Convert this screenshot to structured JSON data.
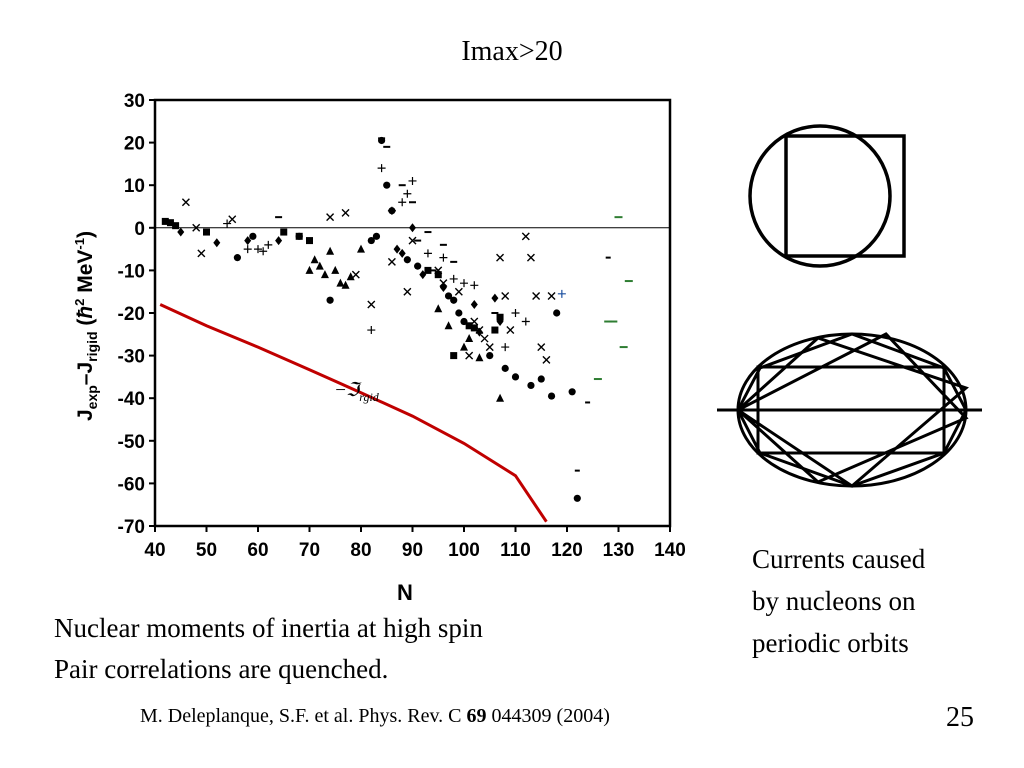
{
  "slide": {
    "title": "Imax>20",
    "caption_right": [
      "Currents caused",
      "by nucleons on",
      "periodic orbits"
    ],
    "caption_left": [
      "Nuclear moments of inertia at high spin",
      "Pair correlations are quenched."
    ],
    "reference": {
      "prefix": "M. Deleplanque, S.F. et al. Phys. Rev. C ",
      "volume": "69",
      "suffix": " 044309 (2004)"
    },
    "page_number": "25"
  },
  "chart_data": {
    "type": "scatter",
    "xlabel": "N",
    "ylabel": {
      "main": "J",
      "sub1": "exp",
      "dash": "–",
      "main2": "J",
      "sub2": "rigid",
      "units_open": " (",
      "hbar": "ħ",
      "sq": "2",
      "units_mid": " MeV",
      "inv": "-1",
      "units_close": ")"
    },
    "xlim": [
      40,
      140
    ],
    "ylim": [
      -70,
      30
    ],
    "xticks": [
      "40",
      "50",
      "60",
      "70",
      "80",
      "90",
      "100",
      "110",
      "120",
      "130",
      "140"
    ],
    "yticks": [
      "30",
      "20",
      "10",
      "0",
      "-10",
      "-20",
      "-30",
      "-40",
      "-50",
      "-60",
      "-70"
    ],
    "zero_line": 0,
    "curve_label": {
      "prefix": "−",
      "symbol": "ℑ",
      "sub": "rgid"
    },
    "line_color": "#c00000",
    "green_color": "#2e7d32",
    "blue_color": "#1a4fa0",
    "rigid_curve": [
      [
        41,
        -18
      ],
      [
        50,
        -23
      ],
      [
        60,
        -28
      ],
      [
        70,
        -33.3
      ],
      [
        80,
        -38.7
      ],
      [
        90,
        -44.2
      ],
      [
        100,
        -50.6
      ],
      [
        110,
        -58.2
      ],
      [
        116,
        -69
      ]
    ],
    "points": {
      "circle": [
        [
          56,
          -7
        ],
        [
          59,
          -2
        ],
        [
          68,
          -2
        ],
        [
          74,
          -17
        ],
        [
          82,
          -3
        ],
        [
          83,
          -2
        ],
        [
          84,
          20.5
        ],
        [
          85,
          10
        ],
        [
          86,
          4
        ],
        [
          89,
          -7.5
        ],
        [
          91,
          -9
        ],
        [
          97,
          -16
        ],
        [
          98,
          -17
        ],
        [
          99,
          -20
        ],
        [
          100,
          -22
        ],
        [
          105,
          -30
        ],
        [
          108,
          -33
        ],
        [
          110,
          -35
        ],
        [
          113,
          -37
        ],
        [
          115,
          -35.5
        ],
        [
          117,
          -39.5
        ],
        [
          118,
          -20
        ],
        [
          121,
          -38.5
        ],
        [
          122,
          -63.5
        ]
      ],
      "square": [
        [
          42,
          1.5
        ],
        [
          43,
          1.2
        ],
        [
          44,
          0.5
        ],
        [
          50,
          -1
        ],
        [
          65,
          -1
        ],
        [
          68,
          -2
        ],
        [
          70,
          -3
        ],
        [
          93,
          -10
        ],
        [
          95,
          -11
        ],
        [
          98,
          -30
        ],
        [
          101,
          -23
        ],
        [
          102,
          -23.5
        ],
        [
          106,
          -24
        ],
        [
          107,
          -21
        ]
      ],
      "triangle": [
        [
          70,
          -10
        ],
        [
          71,
          -7.5
        ],
        [
          72,
          -9
        ],
        [
          73,
          -11
        ],
        [
          74,
          -5.5
        ],
        [
          75,
          -10
        ],
        [
          76,
          -13
        ],
        [
          77,
          -13.5
        ],
        [
          78,
          -11.5
        ],
        [
          80,
          -5
        ],
        [
          95,
          -19
        ],
        [
          97,
          -23
        ],
        [
          100,
          -28
        ],
        [
          101,
          -26
        ],
        [
          103,
          -30.5
        ],
        [
          107,
          -40
        ]
      ],
      "diamond": [
        [
          45,
          -1
        ],
        [
          52,
          -3.5
        ],
        [
          58,
          -3
        ],
        [
          64,
          -3
        ],
        [
          87,
          -5
        ],
        [
          88,
          -6
        ],
        [
          90,
          0
        ],
        [
          92,
          -11
        ],
        [
          96,
          -14
        ],
        [
          102,
          -18
        ],
        [
          103,
          -24.5
        ],
        [
          106,
          -16.5
        ],
        [
          107,
          -22
        ]
      ],
      "x": [
        [
          46,
          6
        ],
        [
          48,
          0
        ],
        [
          49,
          -6
        ],
        [
          55,
          2
        ],
        [
          74,
          2.5
        ],
        [
          77,
          3.5
        ],
        [
          79,
          -11
        ],
        [
          82,
          -18
        ],
        [
          86,
          -8
        ],
        [
          89,
          -15
        ],
        [
          90,
          -3
        ],
        [
          95,
          -10
        ],
        [
          96,
          -13
        ],
        [
          99,
          -15
        ],
        [
          101,
          -30
        ],
        [
          102,
          -22
        ],
        [
          103,
          -24
        ],
        [
          104,
          -26
        ],
        [
          105,
          -28
        ],
        [
          107,
          -7
        ],
        [
          108,
          -16
        ],
        [
          109,
          -24
        ],
        [
          112,
          -2
        ],
        [
          113,
          -7
        ],
        [
          114,
          -16
        ],
        [
          115,
          -28
        ],
        [
          116,
          -31
        ],
        [
          117,
          -16
        ]
      ],
      "plus": [
        [
          54,
          1
        ],
        [
          58,
          -5
        ],
        [
          60,
          -5
        ],
        [
          61,
          -5.5
        ],
        [
          62,
          -4
        ],
        [
          82,
          -24
        ],
        [
          84,
          14
        ],
        [
          86,
          4
        ],
        [
          88,
          6
        ],
        [
          89,
          8
        ],
        [
          90,
          11
        ],
        [
          93,
          -6
        ],
        [
          96,
          -7
        ],
        [
          98,
          -12
        ],
        [
          100,
          -13
        ],
        [
          102,
          -13.5
        ],
        [
          108,
          -28
        ],
        [
          110,
          -20
        ],
        [
          112,
          -22
        ]
      ],
      "dash": [
        [
          64,
          2.5
        ],
        [
          84,
          21
        ],
        [
          85,
          19
        ],
        [
          88,
          10
        ],
        [
          90,
          6
        ],
        [
          91,
          -3
        ],
        [
          93,
          -1
        ],
        [
          94,
          -10
        ],
        [
          96,
          -4
        ],
        [
          98,
          -8
        ],
        [
          106,
          -20
        ]
      ],
      "dash_green": [
        [
          126,
          -35.5
        ],
        [
          128,
          -22
        ],
        [
          129,
          -22
        ],
        [
          130,
          2.5
        ],
        [
          131,
          -28
        ],
        [
          132,
          -12.5
        ]
      ],
      "dash_black_small": [
        [
          122,
          -57
        ],
        [
          124,
          -41
        ],
        [
          128,
          -7
        ]
      ],
      "plus_blue": [
        [
          119,
          -15.5
        ]
      ]
    }
  }
}
